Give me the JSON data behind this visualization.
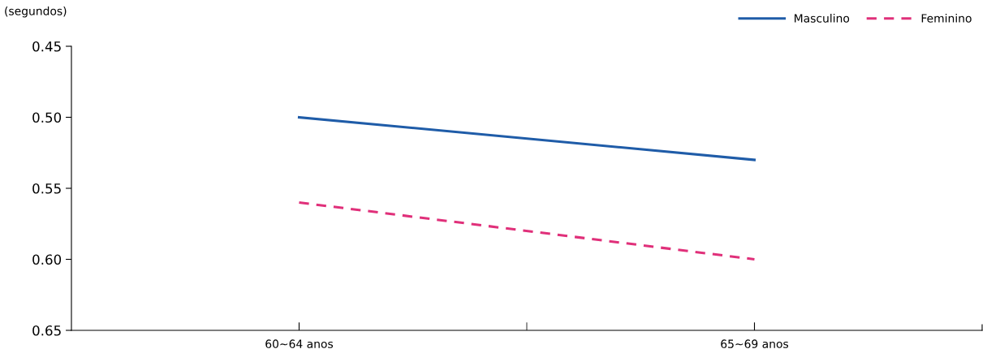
{
  "chart_data": {
    "type": "line",
    "ylabel": "(segundos)",
    "categories": [
      "60~64 anos",
      "65~69 anos"
    ],
    "series": [
      {
        "name": "Masculino",
        "color": "#1f5ca8",
        "values": [
          0.5,
          0.53
        ],
        "line_style": "solid"
      },
      {
        "name": "Feminino",
        "color": "#e0307a",
        "values": [
          0.56,
          0.6
        ],
        "line_style": "dashed"
      }
    ],
    "ylim": [
      0.65,
      0.45
    ],
    "yticks": [
      {
        "value": 0.45,
        "label": "0.45"
      },
      {
        "value": 0.5,
        "label": "0.50"
      },
      {
        "value": 0.55,
        "label": "0.55"
      },
      {
        "value": 0.6,
        "label": "0.60"
      },
      {
        "value": 0.65,
        "label": "0.65"
      }
    ],
    "grid": false,
    "legend": "top right",
    "marker": "none"
  }
}
